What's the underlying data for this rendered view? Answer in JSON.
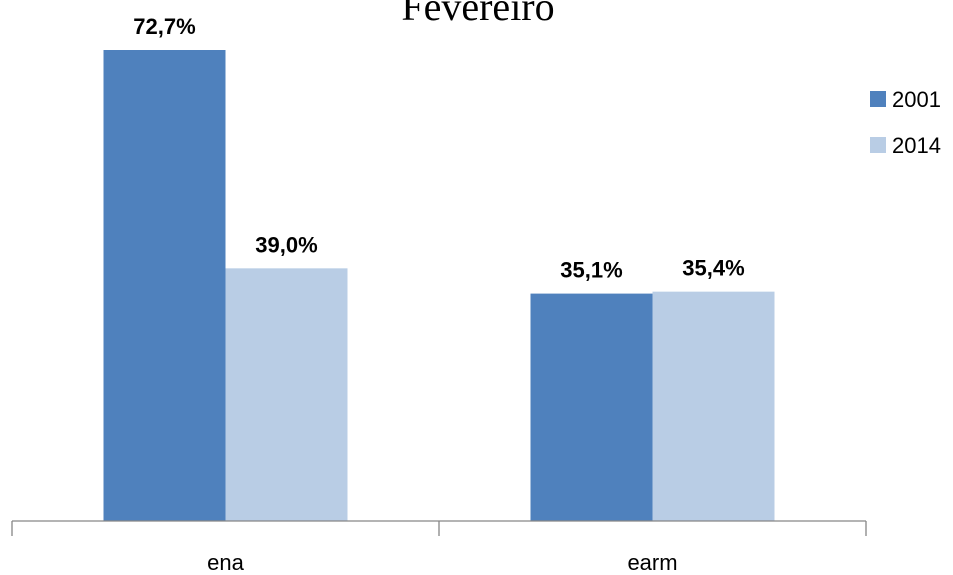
{
  "chart_data": {
    "type": "bar",
    "title": "Fevereiro",
    "categories": [
      "ena",
      "earm"
    ],
    "series": [
      {
        "name": "2001",
        "values": [
          72.7,
          35.1
        ],
        "labels": [
          "72,7%",
          "35,1%"
        ],
        "color": "#4F81BD"
      },
      {
        "name": "2014",
        "values": [
          39.0,
          35.4
        ],
        "labels": [
          "39,0%",
          "35,4%"
        ],
        "color": "#B9CDE5"
      }
    ],
    "ylim": [
      0,
      80
    ],
    "grid": false,
    "legend": "right"
  }
}
